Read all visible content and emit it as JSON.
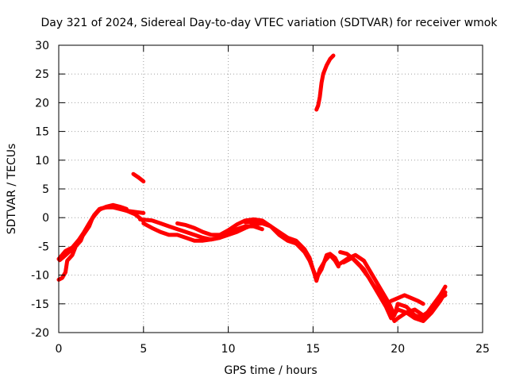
{
  "chart_data": {
    "type": "scatter",
    "title": "Day 321 of 2024, Sidereal Day-to-day VTEC variation (SDTVAR) for receiver wmok",
    "xlabel": "GPS time / hours",
    "ylabel": "SDTVAR / TECUs",
    "xlim": [
      0,
      25
    ],
    "ylim": [
      -20,
      30
    ],
    "xticks": [
      0,
      5,
      10,
      15,
      20,
      25
    ],
    "yticks": [
      -20,
      -15,
      -10,
      -5,
      0,
      5,
      10,
      15,
      20,
      25,
      30
    ],
    "grid": true,
    "marker": "+",
    "color": "#ff0000",
    "series": [
      {
        "name": "arc-a1",
        "points": [
          [
            0,
            -10.8
          ],
          [
            0.2,
            -10.5
          ],
          [
            0.4,
            -9.5
          ],
          [
            0.5,
            -7.5
          ],
          [
            0.8,
            -6.5
          ],
          [
            1.0,
            -5.0
          ],
          [
            1.3,
            -4.0
          ],
          [
            1.5,
            -2.5
          ],
          [
            1.8,
            -1.0
          ],
          [
            2.1,
            0.5
          ],
          [
            2.4,
            1.5
          ],
          [
            2.8,
            1.8
          ],
          [
            3.2,
            1.8
          ],
          [
            3.6,
            1.5
          ],
          [
            4.0,
            1.2
          ],
          [
            4.5,
            1.0
          ],
          [
            5.0,
            0.8
          ]
        ]
      },
      {
        "name": "arc-a2",
        "points": [
          [
            0,
            -7.2
          ],
          [
            0.2,
            -6.5
          ],
          [
            0.4,
            -5.8
          ],
          [
            0.6,
            -5.5
          ],
          [
            0.8,
            -5.2
          ],
          [
            1.0,
            -4.5
          ],
          [
            1.2,
            -3.8
          ],
          [
            1.5,
            -2.5
          ],
          [
            1.8,
            -1.0
          ],
          [
            2.2,
            0.8
          ],
          [
            2.5,
            1.6
          ],
          [
            3.0,
            1.9
          ],
          [
            3.5,
            1.7
          ],
          [
            4.0,
            1.2
          ],
          [
            4.5,
            0.6
          ],
          [
            5.0,
            -0.6
          ]
        ]
      },
      {
        "name": "arc-a3",
        "points": [
          [
            0.05,
            -7.4
          ],
          [
            0.3,
            -6.8
          ],
          [
            0.6,
            -6.0
          ],
          [
            0.9,
            -5.3
          ],
          [
            1.2,
            -4.0
          ],
          [
            1.5,
            -2.8
          ],
          [
            1.8,
            -1.5
          ],
          [
            2.0,
            0.0
          ],
          [
            2.4,
            1.4
          ],
          [
            2.8,
            1.9
          ],
          [
            3.2,
            2.2
          ],
          [
            3.6,
            1.9
          ],
          [
            4.0,
            1.5
          ]
        ]
      },
      {
        "name": "arc-b",
        "points": [
          [
            4.4,
            7.6
          ],
          [
            4.7,
            7.0
          ],
          [
            5.0,
            6.3
          ]
        ]
      },
      {
        "name": "arc-c1",
        "points": [
          [
            4.8,
            -0.3
          ],
          [
            5.5,
            -0.5
          ],
          [
            6.0,
            -1.0
          ],
          [
            6.5,
            -1.5
          ],
          [
            7.0,
            -2.0
          ],
          [
            7.5,
            -2.5
          ],
          [
            8.0,
            -3.0
          ],
          [
            8.5,
            -3.5
          ],
          [
            9.0,
            -3.8
          ],
          [
            9.5,
            -3.5
          ],
          [
            10.0,
            -2.5
          ],
          [
            10.5,
            -2.0
          ],
          [
            11.0,
            -1.5
          ],
          [
            11.5,
            -1.5
          ],
          [
            12.0,
            -2.0
          ]
        ]
      },
      {
        "name": "arc-c2",
        "points": [
          [
            5.0,
            -1.0
          ],
          [
            5.5,
            -1.8
          ],
          [
            6.0,
            -2.5
          ],
          [
            6.5,
            -3.0
          ],
          [
            7.0,
            -3.0
          ],
          [
            7.5,
            -3.5
          ],
          [
            8.0,
            -4.0
          ],
          [
            8.5,
            -4.0
          ],
          [
            9.0,
            -3.8
          ],
          [
            9.5,
            -3.5
          ],
          [
            10.0,
            -3.0
          ],
          [
            10.5,
            -2.5
          ],
          [
            11.0,
            -1.8
          ],
          [
            11.5,
            -1.2
          ],
          [
            12.0,
            -1.0
          ],
          [
            12.5,
            -1.5
          ]
        ]
      },
      {
        "name": "arc-c3",
        "points": [
          [
            7.0,
            -1.0
          ],
          [
            7.5,
            -1.3
          ],
          [
            8.0,
            -1.8
          ],
          [
            8.5,
            -2.5
          ],
          [
            9.0,
            -3.0
          ],
          [
            9.5,
            -3.0
          ],
          [
            10.0,
            -2.2
          ],
          [
            10.5,
            -1.2
          ],
          [
            11.0,
            -0.5
          ],
          [
            11.5,
            -0.3
          ],
          [
            12.0,
            -0.5
          ],
          [
            12.5,
            -1.5
          ],
          [
            13.0,
            -3.0
          ],
          [
            13.5,
            -4.0
          ],
          [
            14.0,
            -4.5
          ],
          [
            14.5,
            -6.0
          ],
          [
            14.8,
            -7.5
          ],
          [
            15.0,
            -9.0
          ],
          [
            15.2,
            -10.5
          ],
          [
            15.5,
            -9.0
          ],
          [
            15.8,
            -6.5
          ],
          [
            16.0,
            -6.3
          ],
          [
            16.3,
            -7.0
          ],
          [
            16.5,
            -8.2
          ]
        ]
      },
      {
        "name": "arc-c4",
        "points": [
          [
            11.0,
            -0.8
          ],
          [
            11.5,
            -0.7
          ],
          [
            12.0,
            -0.6
          ],
          [
            12.5,
            -1.5
          ],
          [
            13.0,
            -2.5
          ],
          [
            13.5,
            -3.5
          ],
          [
            14.0,
            -4.0
          ],
          [
            14.5,
            -5.5
          ],
          [
            14.8,
            -7.0
          ],
          [
            15.0,
            -9.0
          ],
          [
            15.2,
            -11.0
          ],
          [
            15.4,
            -9.0
          ],
          [
            15.7,
            -7.5
          ],
          [
            16.0,
            -6.5
          ],
          [
            16.3,
            -7.5
          ],
          [
            16.5,
            -8.5
          ]
        ]
      },
      {
        "name": "arc-d",
        "points": [
          [
            15.2,
            18.8
          ],
          [
            15.3,
            19.5
          ],
          [
            15.4,
            21.0
          ],
          [
            15.5,
            23.5
          ],
          [
            15.6,
            25.0
          ],
          [
            15.8,
            26.5
          ],
          [
            16.0,
            27.6
          ],
          [
            16.2,
            28.2
          ]
        ]
      },
      {
        "name": "arc-e1",
        "points": [
          [
            16.5,
            -8.2
          ],
          [
            17.0,
            -7.2
          ],
          [
            17.5,
            -6.5
          ],
          [
            18.0,
            -7.5
          ],
          [
            18.5,
            -10.0
          ],
          [
            19.0,
            -12.5
          ],
          [
            19.5,
            -15.0
          ],
          [
            19.8,
            -17.0
          ],
          [
            20.0,
            -15.0
          ],
          [
            20.5,
            -15.5
          ],
          [
            21.0,
            -17.0
          ],
          [
            21.5,
            -17.5
          ],
          [
            22.0,
            -15.5
          ],
          [
            22.5,
            -13.5
          ],
          [
            22.8,
            -12.0
          ]
        ]
      },
      {
        "name": "arc-e2",
        "points": [
          [
            16.8,
            -7.8
          ],
          [
            17.3,
            -7.0
          ],
          [
            17.8,
            -8.5
          ],
          [
            18.3,
            -10.5
          ],
          [
            18.8,
            -13.0
          ],
          [
            19.3,
            -15.5
          ],
          [
            19.6,
            -17.5
          ],
          [
            20.0,
            -16.0
          ],
          [
            20.5,
            -16.5
          ],
          [
            21.0,
            -17.5
          ],
          [
            21.5,
            -18.0
          ],
          [
            22.0,
            -16.5
          ],
          [
            22.5,
            -14.5
          ],
          [
            22.8,
            -13.0
          ]
        ]
      },
      {
        "name": "arc-e3",
        "points": [
          [
            16.6,
            -6.0
          ],
          [
            17.0,
            -6.3
          ],
          [
            17.5,
            -7.5
          ],
          [
            18.0,
            -9.0
          ],
          [
            18.5,
            -11.5
          ],
          [
            19.0,
            -13.5
          ],
          [
            19.5,
            -16.0
          ],
          [
            19.8,
            -18.0
          ],
          [
            20.0,
            -17.5
          ],
          [
            20.5,
            -16.5
          ],
          [
            21.0,
            -16.0
          ],
          [
            21.5,
            -17.0
          ],
          [
            22.0,
            -16.0
          ],
          [
            22.5,
            -14.0
          ],
          [
            22.8,
            -13.5
          ]
        ]
      },
      {
        "name": "arc-e4",
        "points": [
          [
            19.6,
            -14.5
          ],
          [
            20.0,
            -14.0
          ],
          [
            20.4,
            -13.5
          ],
          [
            20.8,
            -14.0
          ],
          [
            21.2,
            -14.5
          ],
          [
            21.5,
            -15.0
          ]
        ]
      }
    ]
  }
}
